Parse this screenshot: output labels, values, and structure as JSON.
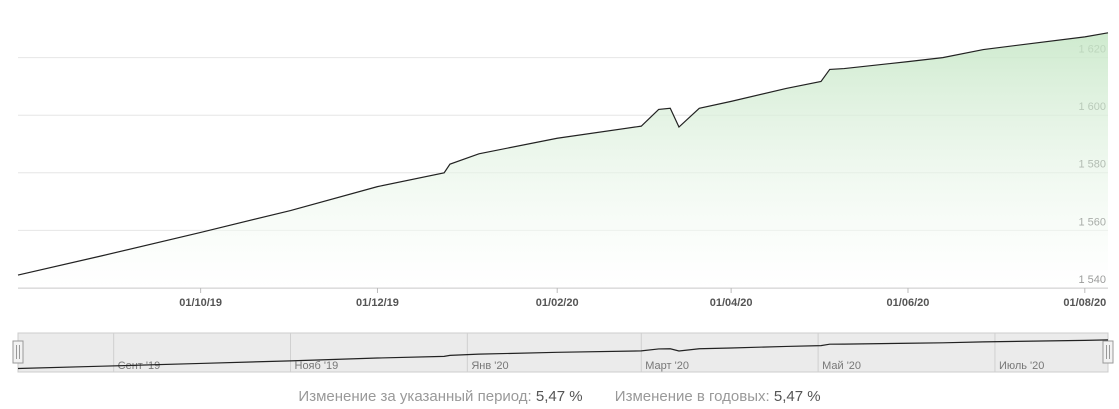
{
  "chart_data": {
    "type": "area",
    "x": [
      "30/07/19",
      "28/08/19",
      "01/10/19",
      "01/11/19",
      "01/12/19",
      "24/12/19",
      "26/12/19",
      "05/01/20",
      "01/02/20",
      "01/03/20",
      "07/03/20",
      "11/03/20",
      "14/03/20",
      "21/03/20",
      "01/04/20",
      "20/04/20",
      "02/05/20",
      "05/05/20",
      "10/05/20",
      "01/06/20",
      "13/06/20",
      "27/06/20",
      "01/08/20",
      "09/08/20"
    ],
    "values": [
      1544.5,
      1551.2,
      1559.3,
      1566.9,
      1575.2,
      1580,
      1583,
      1586.6,
      1592,
      1596.2,
      1602,
      1602.4,
      1595.9,
      1602.4,
      1604.8,
      1609.3,
      1611.7,
      1615.9,
      1616.2,
      1618.6,
      1620,
      1622.8,
      1627.2,
      1628.6
    ],
    "color": "#222222",
    "fill_color": "#c9e8c9",
    "xlim": [
      "30/07/19",
      "09/08/20"
    ],
    "xticks": [
      "01/10/19",
      "01/12/19",
      "01/02/20",
      "01/04/20",
      "01/06/20",
      "01/08/20"
    ],
    "ylim": [
      1540,
      1640
    ],
    "yticks": [
      {
        "value": 1540,
        "label": "1 540"
      },
      {
        "value": 1560,
        "label": "1 560"
      },
      {
        "value": 1580,
        "label": "1 580"
      },
      {
        "value": 1600,
        "label": "1 600"
      },
      {
        "value": 1620,
        "label": "1 620"
      }
    ],
    "grid": true,
    "navigator_ticks": [
      {
        "value": "01/09/19",
        "label": "Сент '19"
      },
      {
        "value": "01/11/19",
        "label": "Нояб '19"
      },
      {
        "value": "01/01/20",
        "label": "Янв '20"
      },
      {
        "value": "01/03/20",
        "label": "Март '20"
      },
      {
        "value": "01/05/20",
        "label": "Май '20"
      },
      {
        "value": "01/07/20",
        "label": "Июль '20"
      }
    ]
  },
  "footer": [
    {
      "label": "Изменение за указанный период:",
      "value": "5,47 %"
    },
    {
      "label": "Изменение в годовых:",
      "value": "5,47 %"
    }
  ]
}
